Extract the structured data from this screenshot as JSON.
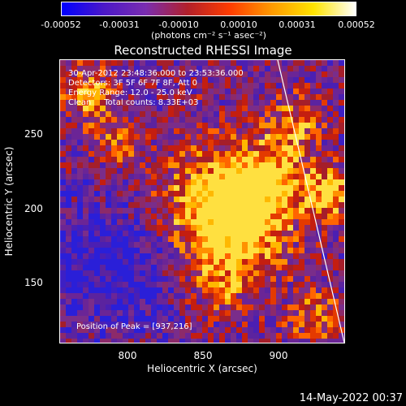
{
  "colorbar": {
    "ticks": [
      "-0.00052",
      "-0.00031",
      "-0.00010",
      "0.00010",
      "0.00031",
      "0.00052"
    ],
    "unit": "(photons cm⁻² s⁻¹ asec⁻²)",
    "colors": [
      "#0000ff",
      "#4b18c8",
      "#7a2db0",
      "#b2202a",
      "#ff3c00",
      "#ff9a00",
      "#ffe400",
      "#ffffff"
    ]
  },
  "title": "Reconstructed RHESSI Image",
  "info": {
    "time_range": "30-Apr-2012 23:48:36.000 to 23:53:36.000",
    "detectors": "Detectors: 3F 5F 6F 7F 8F, Att 0",
    "energy": "Energy Range: 12.0 - 25.0 keV",
    "clean": "Clean     Total counts: 8.33E+03"
  },
  "peak": "Position of Peak = [937,216]",
  "axes": {
    "xlabel": "Heliocentric X (arcsec)",
    "ylabel": "Heliocentric Y (arcsec)",
    "xticks": [
      "800",
      "850",
      "900"
    ],
    "yticks": [
      "250",
      "200",
      "150"
    ]
  },
  "timestamp": "14-May-2022 00:37"
}
